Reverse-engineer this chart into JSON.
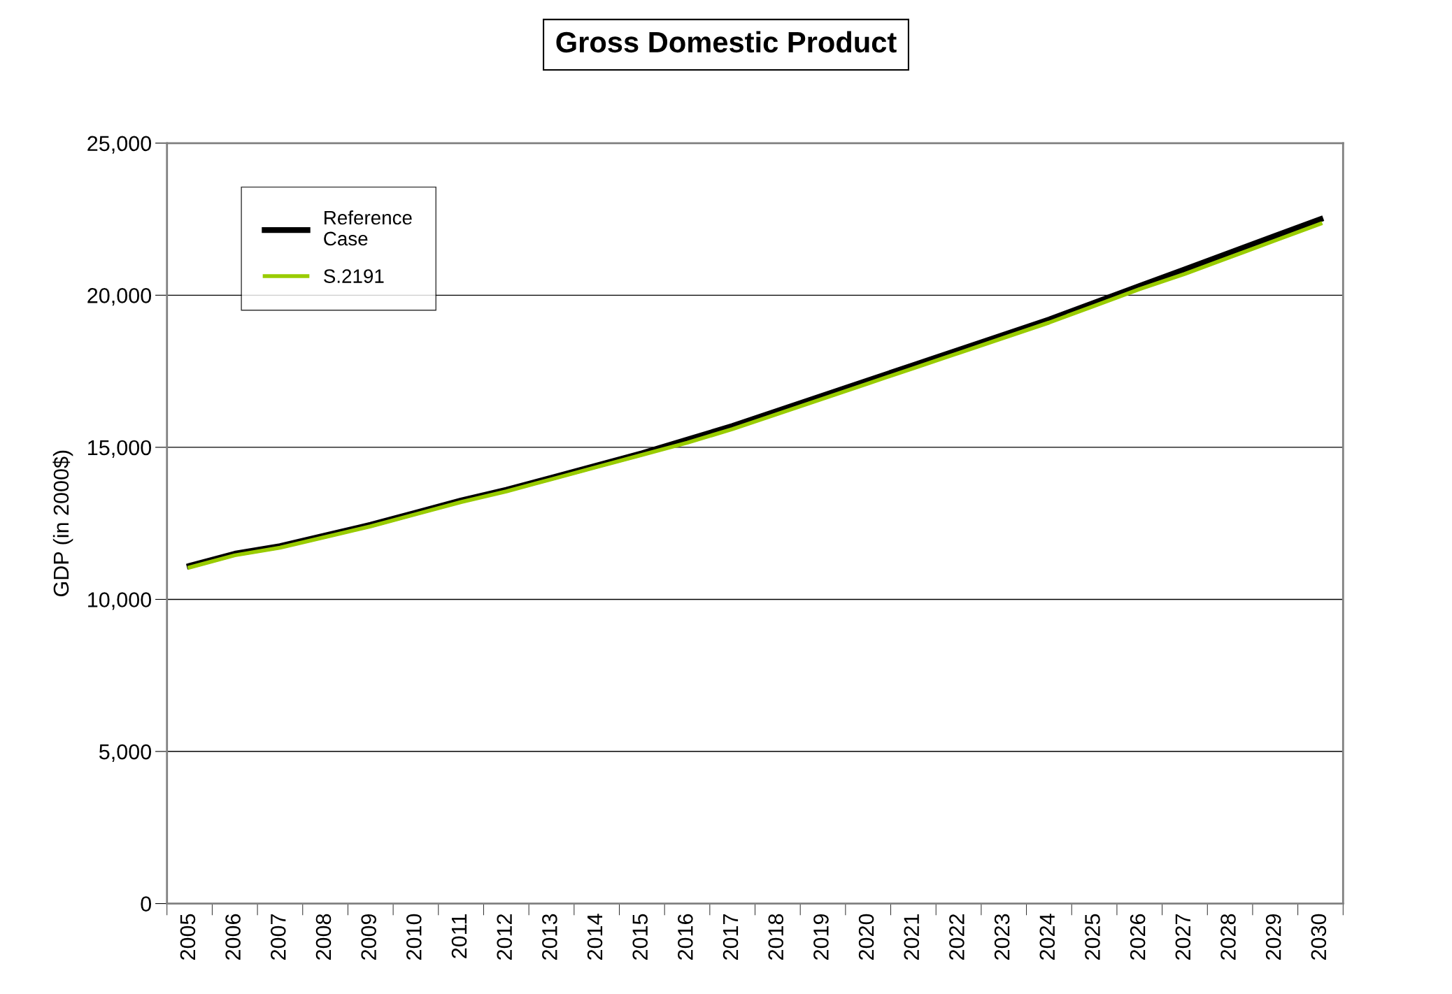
{
  "chart_data": {
    "type": "line",
    "title": "Gross Domestic Product",
    "ylabel": "GDP (in 2000$)",
    "categories": [
      "2005",
      "2006",
      "2007",
      "2008",
      "2009",
      "2010",
      "2011",
      "2012",
      "2013",
      "2014",
      "2015",
      "2016",
      "2017",
      "2018",
      "2019",
      "2020",
      "2021",
      "2022",
      "2023",
      "2024",
      "2025",
      "2026",
      "2027",
      "2028",
      "2029",
      "2030"
    ],
    "series": [
      {
        "name": "Reference\nCase",
        "color": "#000000",
        "values": [
          11100,
          11500,
          11750,
          12100,
          12450,
          12850,
          13250,
          13600,
          14000,
          14400,
          14800,
          15250,
          15700,
          16200,
          16700,
          17200,
          17700,
          18200,
          18700,
          19200,
          19750,
          20300,
          20850,
          21400,
          21950,
          22500
        ]
      },
      {
        "name": "S.2191",
        "color": "#99cc00",
        "values": [
          11050,
          11450,
          11700,
          12050,
          12400,
          12800,
          13200,
          13550,
          13950,
          14350,
          14750,
          15150,
          15600,
          16100,
          16600,
          17100,
          17600,
          18100,
          18600,
          19100,
          19650,
          20200,
          20700,
          21250,
          21800,
          22350
        ]
      }
    ],
    "ylim": [
      0,
      25000
    ],
    "yticks": [
      {
        "value": 0,
        "label": "0"
      },
      {
        "value": 5000,
        "label": "5,000"
      },
      {
        "value": 10000,
        "label": "10,000"
      },
      {
        "value": 15000,
        "label": "15,000"
      },
      {
        "value": 20000,
        "label": "20,000"
      },
      {
        "value": 25000,
        "label": "25,000"
      }
    ],
    "grid": "y",
    "legend": "top left",
    "marker": "none",
    "line_style": "solid"
  }
}
